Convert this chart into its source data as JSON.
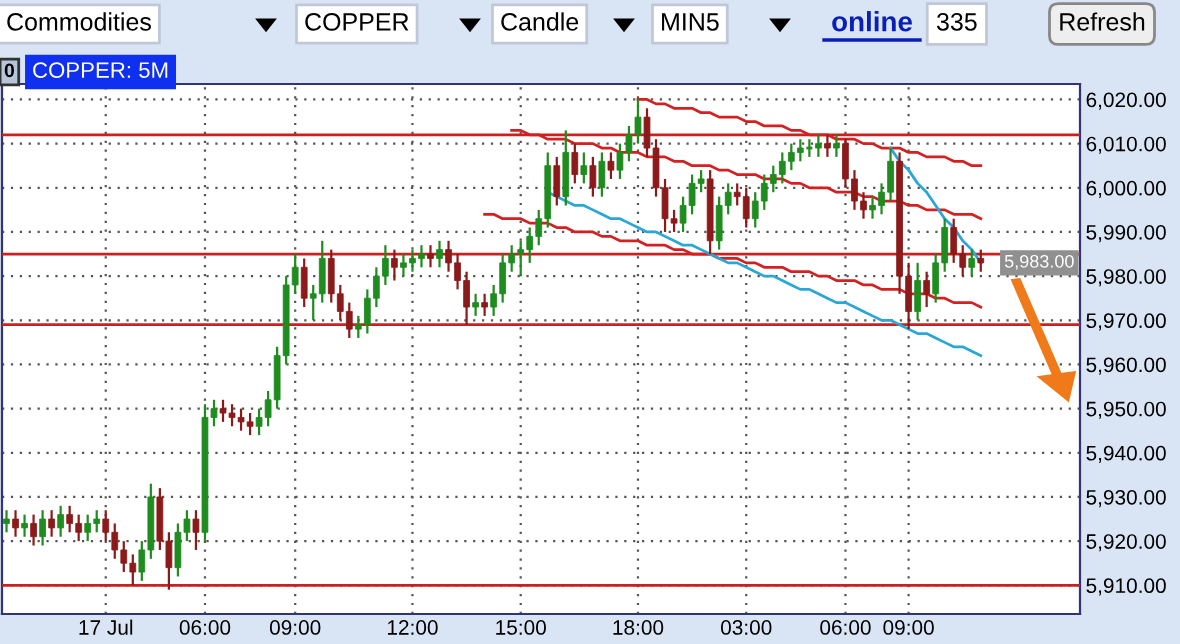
{
  "chart_data": {
    "type": "candlestick",
    "title": "COPPER: 5M",
    "categories": [
      null,
      null,
      null,
      null,
      null,
      null,
      null,
      null,
      null,
      null,
      null,
      "17 Jul",
      null,
      null,
      null,
      null,
      null,
      null,
      null,
      null,
      null,
      null,
      "06:00",
      null,
      null,
      null,
      null,
      null,
      null,
      null,
      null,
      null,
      "09:00",
      null,
      null,
      null,
      null,
      null,
      null,
      null,
      null,
      null,
      null,
      null,
      null,
      "12:00",
      null,
      null,
      null,
      null,
      null,
      null,
      null,
      null,
      null,
      null,
      null,
      "15:00",
      null,
      null,
      null,
      null,
      null,
      null,
      null,
      null,
      null,
      null,
      null,
      null,
      "18:00",
      null,
      null,
      null,
      null,
      null,
      null,
      null,
      null,
      null,
      null,
      null,
      "03:00",
      null,
      null,
      null,
      null,
      null,
      null,
      null,
      null,
      null,
      null,
      "06:00",
      null,
      null,
      null,
      null,
      null,
      null,
      "09:00",
      null,
      null,
      null,
      null,
      null,
      null,
      null,
      null
    ],
    "ohlc": [
      [
        5924,
        5927,
        5922,
        5925
      ],
      [
        5925,
        5927,
        5921,
        5923
      ],
      [
        5923,
        5926,
        5921,
        5924
      ],
      [
        5924,
        5926,
        5919,
        5921
      ],
      [
        5921,
        5927,
        5919,
        5925
      ],
      [
        5925,
        5927,
        5921,
        5923
      ],
      [
        5923,
        5928,
        5921,
        5926
      ],
      [
        5926,
        5928,
        5922,
        5924
      ],
      [
        5924,
        5926,
        5920,
        5922
      ],
      [
        5922,
        5926,
        5920,
        5924
      ],
      [
        5924,
        5927,
        5922,
        5925
      ],
      [
        5925,
        5927,
        5920,
        5922
      ],
      [
        5922,
        5924,
        5916,
        5918
      ],
      [
        5918,
        5920,
        5913,
        5915
      ],
      [
        5915,
        5917,
        5910,
        5913
      ],
      [
        5913,
        5920,
        5911,
        5918
      ],
      [
        5918,
        5933,
        5916,
        5930
      ],
      [
        5930,
        5932,
        5918,
        5920
      ],
      [
        5920,
        5922,
        5909,
        5914
      ],
      [
        5914,
        5924,
        5912,
        5922
      ],
      [
        5922,
        5927,
        5920,
        5925
      ],
      [
        5925,
        5927,
        5918,
        5922
      ],
      [
        5922,
        5951,
        5920,
        5948
      ],
      [
        5948,
        5952,
        5946,
        5950
      ],
      [
        5950,
        5952,
        5947,
        5949
      ],
      [
        5949,
        5951,
        5946,
        5948
      ],
      [
        5948,
        5950,
        5945,
        5947
      ],
      [
        5947,
        5949,
        5944,
        5946
      ],
      [
        5946,
        5950,
        5944,
        5948
      ],
      [
        5948,
        5954,
        5946,
        5952
      ],
      [
        5952,
        5964,
        5950,
        5962
      ],
      [
        5962,
        5980,
        5960,
        5978
      ],
      [
        5978,
        5985,
        5976,
        5982
      ],
      [
        5982,
        5984,
        5973,
        5975
      ],
      [
        5975,
        5978,
        5970,
        5976
      ],
      [
        5976,
        5988,
        5974,
        5984
      ],
      [
        5984,
        5986,
        5974,
        5976
      ],
      [
        5976,
        5978,
        5970,
        5972
      ],
      [
        5972,
        5974,
        5966,
        5968
      ],
      [
        5968,
        5971,
        5966,
        5969
      ],
      [
        5969,
        5977,
        5967,
        5975
      ],
      [
        5975,
        5982,
        5973,
        5980
      ],
      [
        5980,
        5987,
        5978,
        5984
      ],
      [
        5984,
        5986,
        5979,
        5982
      ],
      [
        5982,
        5985,
        5980,
        5983
      ],
      [
        5983,
        5986,
        5981,
        5984
      ],
      [
        5984,
        5987,
        5982,
        5985
      ],
      [
        5985,
        5987,
        5982,
        5984
      ],
      [
        5984,
        5988,
        5982,
        5986
      ],
      [
        5986,
        5988,
        5981,
        5983
      ],
      [
        5983,
        5985,
        5977,
        5979
      ],
      [
        5979,
        5981,
        5969,
        5973
      ],
      [
        5973,
        5976,
        5971,
        5974
      ],
      [
        5974,
        5976,
        5971,
        5973
      ],
      [
        5973,
        5978,
        5971,
        5976
      ],
      [
        5976,
        5985,
        5974,
        5983
      ],
      [
        5983,
        5987,
        5981,
        5985
      ],
      [
        5985,
        5988,
        5980,
        5986
      ],
      [
        5986,
        5991,
        5983,
        5989
      ],
      [
        5989,
        5995,
        5987,
        5993
      ],
      [
        5993,
        6008,
        5991,
        6005
      ],
      [
        6005,
        6007,
        5996,
        5998
      ],
      [
        5998,
        6013,
        5996,
        6008
      ],
      [
        6008,
        6010,
        6001,
        6003
      ],
      [
        6003,
        6008,
        6001,
        6005
      ],
      [
        6005,
        6007,
        5998,
        6000
      ],
      [
        6000,
        6008,
        5998,
        6006
      ],
      [
        6006,
        6008,
        6002,
        6004
      ],
      [
        6004,
        6010,
        6002,
        6008
      ],
      [
        6008,
        6014,
        6006,
        6012
      ],
      [
        6012,
        6020,
        6010,
        6016
      ],
      [
        6016,
        6018,
        6007,
        6009
      ],
      [
        6009,
        6011,
        5998,
        6000
      ],
      [
        6000,
        6002,
        5990,
        5993
      ],
      [
        5993,
        5995,
        5990,
        5992
      ],
      [
        5992,
        5998,
        5990,
        5996
      ],
      [
        5996,
        6003,
        5994,
        6001
      ],
      [
        6001,
        6004,
        5999,
        6002
      ],
      [
        6002,
        6004,
        5985,
        5988
      ],
      [
        5988,
        5998,
        5986,
        5996
      ],
      [
        5996,
        6001,
        5994,
        5999
      ],
      [
        5999,
        6001,
        5996,
        5998
      ],
      [
        5998,
        6000,
        5991,
        5993
      ],
      [
        5993,
        5999,
        5991,
        5997
      ],
      [
        5997,
        6003,
        5995,
        6001
      ],
      [
        6001,
        6005,
        5999,
        6003
      ],
      [
        6003,
        6008,
        6001,
        6006
      ],
      [
        6006,
        6010,
        6004,
        6008
      ],
      [
        6008,
        6011,
        6006,
        6009
      ],
      [
        6009,
        6011,
        6007,
        6009
      ],
      [
        6009,
        6012,
        6007,
        6010
      ],
      [
        6010,
        6012,
        6007,
        6009
      ],
      [
        6009,
        6012,
        6007,
        6010
      ],
      [
        6010,
        6011,
        6000,
        6002
      ],
      [
        6002,
        6004,
        5995,
        5997
      ],
      [
        5997,
        5999,
        5993,
        5995
      ],
      [
        5995,
        5998,
        5993,
        5996
      ],
      [
        5996,
        6001,
        5994,
        5999
      ],
      [
        5999,
        6009,
        5997,
        6006
      ],
      [
        6006,
        6008,
        5976,
        5980
      ],
      [
        5980,
        5983,
        5968,
        5972
      ],
      [
        5972,
        5983,
        5970,
        5979
      ],
      [
        5979,
        5981,
        5973,
        5976
      ],
      [
        5976,
        5985,
        5974,
        5983
      ],
      [
        5983,
        5993,
        5981,
        5991
      ],
      [
        5991,
        5993,
        5983,
        5985
      ],
      [
        5985,
        5987,
        5980,
        5982
      ],
      [
        5982,
        5986,
        5980,
        5984
      ],
      [
        5984,
        5986,
        5981,
        5983
      ]
    ],
    "colors": [
      "#1e8c1e",
      "#8b1a1a",
      "#1e8c1e",
      "#8b1a1a",
      "#1e8c1e",
      "#8b1a1a",
      "#1e8c1e",
      "#8b1a1a",
      "#8b1a1a",
      "#1e8c1e",
      "#1e8c1e",
      "#8b1a1a",
      "#8b1a1a",
      "#8b1a1a",
      "#8b1a1a",
      "#1e8c1e",
      "#1e8c1e",
      "#8b1a1a",
      "#8b1a1a",
      "#1e8c1e",
      "#1e8c1e",
      "#8b1a1a",
      "#1e8c1e",
      "#1e8c1e",
      "#8b1a1a",
      "#8b1a1a",
      "#8b1a1a",
      "#8b1a1a",
      "#1e8c1e",
      "#1e8c1e",
      "#1e8c1e",
      "#1e8c1e",
      "#1e8c1e",
      "#8b1a1a",
      "#1e8c1e",
      "#1e8c1e",
      "#8b1a1a",
      "#8b1a1a",
      "#8b1a1a",
      "#1e8c1e",
      "#1e8c1e",
      "#1e8c1e",
      "#1e8c1e",
      "#8b1a1a",
      "#1e8c1e",
      "#1e8c1e",
      "#1e8c1e",
      "#8b1a1a",
      "#1e8c1e",
      "#8b1a1a",
      "#8b1a1a",
      "#8b1a1a",
      "#1e8c1e",
      "#8b1a1a",
      "#1e8c1e",
      "#1e8c1e",
      "#1e8c1e",
      "#1e8c1e",
      "#1e8c1e",
      "#1e8c1e",
      "#1e8c1e",
      "#8b1a1a",
      "#1e8c1e",
      "#8b1a1a",
      "#1e8c1e",
      "#8b1a1a",
      "#1e8c1e",
      "#8b1a1a",
      "#1e8c1e",
      "#1e8c1e",
      "#1e8c1e",
      "#8b1a1a",
      "#8b1a1a",
      "#8b1a1a",
      "#8b1a1a",
      "#1e8c1e",
      "#1e8c1e",
      "#1e8c1e",
      "#8b1a1a",
      "#1e8c1e",
      "#1e8c1e",
      "#8b1a1a",
      "#8b1a1a",
      "#1e8c1e",
      "#1e8c1e",
      "#1e8c1e",
      "#1e8c1e",
      "#1e8c1e",
      "#1e8c1e",
      "#1e8c1e",
      "#1e8c1e",
      "#8b1a1a",
      "#1e8c1e",
      "#8b1a1a",
      "#8b1a1a",
      "#8b1a1a",
      "#1e8c1e",
      "#1e8c1e",
      "#1e8c1e",
      "#8b1a1a",
      "#8b1a1a",
      "#1e8c1e",
      "#8b1a1a",
      "#1e8c1e",
      "#1e8c1e",
      "#8b1a1a",
      "#8b1a1a",
      "#1e8c1e",
      "#8b1a1a"
    ],
    "series": [
      {
        "type": "line",
        "color": "#d42020",
        "values": [
          null,
          null,
          null,
          null,
          null,
          null,
          null,
          null,
          null,
          null,
          null,
          null,
          null,
          null,
          null,
          null,
          null,
          null,
          null,
          null,
          null,
          null,
          null,
          null,
          null,
          null,
          null,
          null,
          null,
          null,
          null,
          null,
          null,
          null,
          null,
          null,
          null,
          null,
          null,
          null,
          null,
          null,
          null,
          null,
          null,
          null,
          null,
          null,
          null,
          null,
          null,
          null,
          null,
          null,
          null,
          null,
          null,
          null,
          null,
          null,
          null,
          null,
          null,
          null,
          null,
          null,
          null,
          null,
          null,
          null,
          6020,
          6020,
          6019,
          6019,
          6018,
          6018,
          6018,
          6017,
          6017,
          6016,
          6016,
          6016,
          6015,
          6015,
          6014,
          6014,
          6014,
          6013,
          6013,
          6012,
          6012,
          6012,
          6011,
          6011,
          6011,
          6010,
          6010,
          6009,
          6009,
          6009,
          6008,
          6008,
          6007,
          6007,
          6007,
          6006,
          6006,
          6005,
          6005
        ]
      },
      {
        "type": "line",
        "color": "#d42020",
        "values": [
          null,
          null,
          null,
          null,
          null,
          null,
          null,
          null,
          null,
          null,
          null,
          null,
          null,
          null,
          null,
          null,
          null,
          null,
          null,
          null,
          null,
          null,
          null,
          null,
          null,
          null,
          null,
          null,
          null,
          null,
          null,
          null,
          null,
          null,
          null,
          null,
          null,
          null,
          null,
          null,
          null,
          null,
          null,
          null,
          null,
          null,
          null,
          null,
          null,
          null,
          null,
          null,
          null,
          null,
          null,
          null,
          6013,
          6013,
          6012,
          6012,
          6011,
          6011,
          6011,
          6010,
          6010,
          6010,
          6009,
          6009,
          6008,
          6008,
          6008,
          6007,
          6007,
          6007,
          6006,
          6006,
          6005,
          6005,
          6005,
          6004,
          6004,
          6003,
          6003,
          6003,
          6002,
          6002,
          6002,
          6001,
          6001,
          6000,
          6000,
          6000,
          5999,
          5999,
          5999,
          5998,
          5998,
          5997,
          5997,
          5997,
          5996,
          5996,
          5995,
          5995,
          5995,
          5994,
          5994,
          5994,
          5993
        ]
      },
      {
        "type": "line",
        "color": "#d42020",
        "values": [
          null,
          null,
          null,
          null,
          null,
          null,
          null,
          null,
          null,
          null,
          null,
          null,
          null,
          null,
          null,
          null,
          null,
          null,
          null,
          null,
          null,
          null,
          null,
          null,
          null,
          null,
          null,
          null,
          null,
          null,
          null,
          null,
          null,
          null,
          null,
          null,
          null,
          null,
          null,
          null,
          null,
          null,
          null,
          null,
          null,
          null,
          null,
          null,
          null,
          null,
          null,
          null,
          null,
          5994,
          5994,
          5993,
          5993,
          5993,
          5992,
          5992,
          5992,
          5991,
          5991,
          5990,
          5990,
          5990,
          5989,
          5989,
          5988,
          5988,
          5988,
          5987,
          5987,
          5987,
          5986,
          5986,
          5985,
          5985,
          5985,
          5984,
          5984,
          5984,
          5983,
          5983,
          5982,
          5982,
          5982,
          5981,
          5981,
          5981,
          5980,
          5980,
          5979,
          5979,
          5979,
          5978,
          5978,
          5977,
          5977,
          5977,
          5976,
          5976,
          5976,
          5975,
          5975,
          5974,
          5974,
          5974,
          5973
        ]
      },
      {
        "type": "line",
        "color": "#2aa7d6",
        "values": [
          null,
          null,
          null,
          null,
          null,
          null,
          null,
          null,
          null,
          null,
          null,
          null,
          null,
          null,
          null,
          null,
          null,
          null,
          null,
          null,
          null,
          null,
          null,
          null,
          null,
          null,
          null,
          null,
          null,
          null,
          null,
          null,
          null,
          null,
          null,
          null,
          null,
          null,
          null,
          null,
          null,
          null,
          null,
          null,
          null,
          null,
          null,
          null,
          null,
          null,
          null,
          null,
          null,
          null,
          null,
          null,
          null,
          null,
          null,
          null,
          5999,
          5998,
          5997,
          5996,
          5996,
          5995,
          5994,
          5993,
          5993,
          5992,
          5991,
          5990,
          5990,
          5989,
          5988,
          5987,
          5987,
          5986,
          5985,
          5984,
          5983,
          5983,
          5982,
          5981,
          5980,
          5980,
          5979,
          5978,
          5977,
          5977,
          5976,
          5975,
          5974,
          5974,
          5973,
          5972,
          5971,
          5970,
          5970,
          5969,
          5968,
          5967,
          5967,
          5966,
          5965,
          5964,
          5964,
          5963,
          5962
        ]
      },
      {
        "type": "line",
        "color": "#2aa7d6",
        "values": [
          null,
          null,
          null,
          null,
          null,
          null,
          null,
          null,
          null,
          null,
          null,
          null,
          null,
          null,
          null,
          null,
          null,
          null,
          null,
          null,
          null,
          null,
          null,
          null,
          null,
          null,
          null,
          null,
          null,
          null,
          null,
          null,
          null,
          null,
          null,
          null,
          null,
          null,
          null,
          null,
          null,
          null,
          null,
          null,
          null,
          null,
          null,
          null,
          null,
          null,
          null,
          null,
          null,
          null,
          null,
          null,
          null,
          null,
          null,
          null,
          null,
          null,
          null,
          null,
          null,
          null,
          null,
          null,
          null,
          null,
          null,
          null,
          null,
          null,
          null,
          null,
          null,
          null,
          null,
          null,
          null,
          null,
          null,
          null,
          null,
          null,
          null,
          null,
          null,
          null,
          null,
          null,
          null,
          null,
          null,
          null,
          null,
          null,
          6009,
          6006,
          6004,
          6001,
          5999,
          5996,
          5993,
          5991,
          5988,
          5986,
          5983
        ]
      }
    ],
    "ylim": [
      5903.5,
      6023.5
    ],
    "yticks": [
      {
        "value": 5910,
        "label": "5,910.00"
      },
      {
        "value": 5920,
        "label": "5,920.00"
      },
      {
        "value": 5930,
        "label": "5,930.00"
      },
      {
        "value": 5940,
        "label": "5,940.00"
      },
      {
        "value": 5950,
        "label": "5,950.00"
      },
      {
        "value": 5960,
        "label": "5,960.00"
      },
      {
        "value": 5970,
        "label": "5,970.00"
      },
      {
        "value": 5980,
        "label": "5,980.00"
      },
      {
        "value": 5990,
        "label": "5,990.00"
      },
      {
        "value": 6000,
        "label": "6,000.00"
      },
      {
        "value": 6010,
        "label": "6,010.00"
      },
      {
        "value": 6020,
        "label": "6,020.00"
      }
    ],
    "ref_lines": [
      {
        "axis": "y",
        "value": 6012,
        "color": "#cc2020"
      },
      {
        "axis": "y",
        "value": 5985,
        "color": "#cc2020"
      },
      {
        "axis": "y",
        "value": 5969,
        "color": "#cc2020"
      },
      {
        "axis": "y",
        "value": 5910,
        "color": "#cc2020"
      }
    ],
    "grid": true,
    "legend": false,
    "annotations": [
      "Commodities",
      "COPPER",
      "Candle",
      "MIN5",
      "online",
      "335",
      "Refresh",
      "0",
      "5,983.00"
    ]
  }
}
